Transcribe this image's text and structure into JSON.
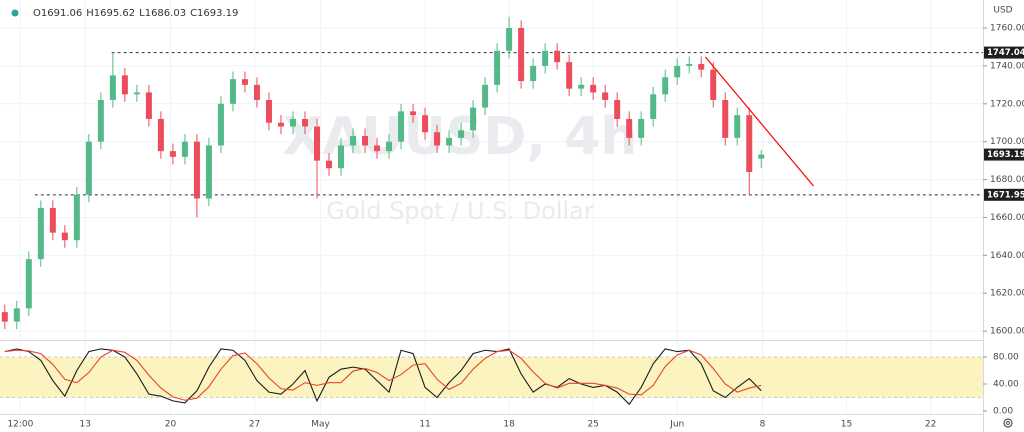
{
  "chart_data": [
    {
      "type": "candlestick",
      "watermark": "XAUUSD, 4h",
      "subtitle": "Gold Spot / U.S. Dollar",
      "currency": "USD",
      "ohlc_labels": [
        "O",
        "H",
        "L",
        "C"
      ],
      "open": [
        1610,
        1605,
        1612,
        1638,
        1665,
        1652,
        1648,
        1672,
        1700,
        1722,
        1735,
        1725,
        1726,
        1712,
        1695,
        1692,
        1700,
        1670,
        1698,
        1720,
        1733,
        1730,
        1722,
        1710,
        1708,
        1712,
        1708,
        1690,
        1686,
        1698,
        1703,
        1698,
        1695,
        1700,
        1716,
        1714,
        1705,
        1698,
        1702,
        1706,
        1718,
        1730,
        1748,
        1760,
        1732,
        1740,
        1748,
        1742,
        1728,
        1730,
        1726,
        1722,
        1712,
        1702,
        1712,
        1725,
        1734,
        1740,
        1741,
        1738,
        1722,
        1702,
        1714,
        1691.06
      ],
      "high": [
        1614,
        1616,
        1642,
        1669,
        1669,
        1656,
        1676,
        1704,
        1726,
        1747.04,
        1739,
        1730,
        1730,
        1716,
        1699,
        1704,
        1704,
        1702,
        1724,
        1737,
        1737,
        1734,
        1726,
        1714,
        1716,
        1716,
        1712,
        1694,
        1702,
        1707,
        1707,
        1702,
        1704,
        1720,
        1720,
        1718,
        1709,
        1706,
        1710,
        1722,
        1734,
        1752,
        1766,
        1764,
        1744,
        1752,
        1752,
        1746,
        1734,
        1734,
        1730,
        1726,
        1716,
        1716,
        1729,
        1738,
        1744,
        1745,
        1745,
        1742,
        1726,
        1718,
        1718,
        1695.62
      ],
      "low": [
        1601,
        1601,
        1608,
        1634,
        1648,
        1644,
        1644,
        1668,
        1696,
        1718,
        1721,
        1721,
        1708,
        1691,
        1688,
        1688,
        1660,
        1666,
        1694,
        1716,
        1726,
        1718,
        1706,
        1704,
        1704,
        1704,
        1670,
        1682,
        1682,
        1694,
        1694,
        1691,
        1691,
        1696,
        1710,
        1701,
        1694,
        1694,
        1698,
        1702,
        1714,
        1726,
        1744,
        1728,
        1728,
        1736,
        1738,
        1724,
        1724,
        1722,
        1718,
        1708,
        1698,
        1698,
        1708,
        1721,
        1730,
        1736,
        1734,
        1718,
        1698,
        1698,
        1671.95,
        1686.03
      ],
      "close": [
        1605,
        1612,
        1638,
        1665,
        1652,
        1648,
        1672,
        1700,
        1722,
        1735,
        1725,
        1726,
        1712,
        1695,
        1692,
        1700,
        1670,
        1698,
        1720,
        1733,
        1730,
        1722,
        1710,
        1708,
        1712,
        1708,
        1690,
        1686,
        1698,
        1703,
        1698,
        1695,
        1700,
        1716,
        1714,
        1705,
        1698,
        1702,
        1706,
        1718,
        1730,
        1748,
        1760,
        1732,
        1740,
        1748,
        1742,
        1728,
        1730,
        1726,
        1722,
        1712,
        1702,
        1712,
        1725,
        1734,
        1740,
        1741,
        1738,
        1722,
        1702,
        1714,
        1684,
        1693.19
      ],
      "up_color": "#53b987",
      "down_color": "#eb4d5c",
      "ylim": [
        1595.3,
        1774.8
      ],
      "yticks": [
        {
          "value": 1600,
          "label": "1600.00"
        },
        {
          "value": 1620,
          "label": "1620.00"
        },
        {
          "value": 1640,
          "label": "1640.00"
        },
        {
          "value": 1660,
          "label": "1660.00"
        },
        {
          "value": 1680,
          "label": "1680.00"
        },
        {
          "value": 1700,
          "label": "1700.00"
        },
        {
          "value": 1720,
          "label": "1720.00"
        },
        {
          "value": 1740,
          "label": "1740.00"
        },
        {
          "value": 1760,
          "label": "1760.00"
        }
      ],
      "xlim": [
        -0.4,
        80.8
      ],
      "xticks": [
        {
          "value": 1.3,
          "label": "12:00"
        },
        {
          "value": 6.7,
          "label": "13"
        },
        {
          "value": 13.8,
          "label": "20"
        },
        {
          "value": 20.8,
          "label": "27"
        },
        {
          "value": 26.3,
          "label": "May"
        },
        {
          "value": 35,
          "label": "11"
        },
        {
          "value": 42,
          "label": "18"
        },
        {
          "value": 49,
          "label": "25"
        },
        {
          "value": 56,
          "label": "Jun"
        },
        {
          "value": 63.1,
          "label": "8"
        },
        {
          "value": 70.1,
          "label": "15"
        },
        {
          "value": 77.1,
          "label": "22"
        }
      ],
      "grid": true,
      "hlines": [
        {
          "value": 1747.04,
          "start": 8.9
        },
        {
          "value": 1671.95,
          "start": 2.5
        }
      ],
      "trendline": {
        "x": [
          58.35,
          67.35
        ],
        "values": [
          1744.7,
          1676.6
        ],
        "color": "#ff0000"
      }
    },
    {
      "type": "line",
      "series": [
        {
          "color": "#1a1a1a",
          "values": [
            88,
            92,
            88,
            75,
            45,
            22,
            60,
            88,
            92,
            90,
            80,
            55,
            25,
            22,
            15,
            12,
            30,
            65,
            92,
            90,
            75,
            45,
            28,
            25,
            40,
            60,
            15,
            50,
            62,
            65,
            62,
            45,
            28,
            90,
            85,
            35,
            20,
            42,
            60,
            85,
            90,
            88,
            92,
            55,
            28,
            40,
            35,
            48,
            40,
            35,
            38,
            28,
            10,
            35,
            70,
            92,
            88,
            90,
            70,
            30,
            20,
            35,
            48,
            30
          ]
        },
        {
          "color": "#e8442c",
          "values": [
            88,
            90,
            89,
            85,
            69,
            47,
            42,
            57,
            80,
            90,
            87,
            75,
            53,
            34,
            21,
            16,
            19,
            36,
            62,
            82,
            86,
            70,
            49,
            33,
            31,
            42,
            38,
            42,
            42,
            59,
            63,
            57,
            45,
            54,
            68,
            70,
            47,
            32,
            41,
            62,
            78,
            88,
            90,
            78,
            58,
            41,
            34,
            41,
            41,
            41,
            38,
            34,
            25,
            24,
            38,
            66,
            83,
            90,
            83,
            63,
            40,
            28,
            34,
            38
          ]
        }
      ],
      "ylim": [
        -20.7,
        103.7
      ],
      "yticks": [
        {
          "value": 80,
          "label": "80.00"
        },
        {
          "value": 40,
          "label": "40.00"
        },
        {
          "value": 0,
          "label": "0.00"
        }
      ],
      "band": [
        20,
        80
      ],
      "band_color": "#fbf3c0"
    }
  ]
}
